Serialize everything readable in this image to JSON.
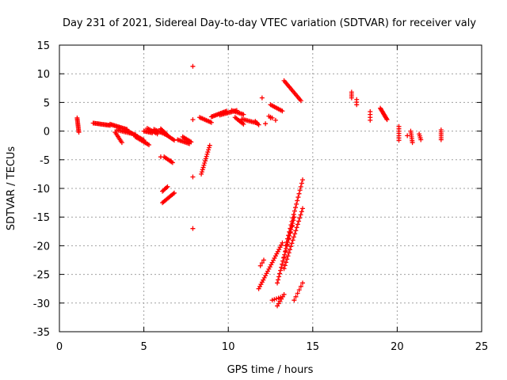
{
  "chart_data": {
    "type": "scatter",
    "title": "Day 231 of 2021, Sidereal Day-to-day VTEC variation (SDTVAR) for receiver valy",
    "xlabel": "GPS time / hours",
    "ylabel": "SDTVAR / TECUs",
    "xlim": [
      0,
      25
    ],
    "ylim": [
      -35,
      15
    ],
    "x_ticks": [
      "0",
      "5",
      "10",
      "15",
      "20",
      "25"
    ],
    "y_ticks": [
      "15",
      "10",
      "5",
      "0",
      "-5",
      "-10",
      "-15",
      "-20",
      "-25",
      "-30",
      "-35"
    ],
    "grid": true,
    "marker": "+",
    "series": [
      {
        "name": "SDTVAR",
        "color": "#ff0000",
        "segments": [
          {
            "from": [
              1.05,
              2.3
            ],
            "to": [
              1.15,
              -0.2
            ],
            "n": 12
          },
          {
            "from": [
              2.0,
              1.4
            ],
            "to": [
              3.0,
              1.0
            ],
            "n": 16
          },
          {
            "from": [
              3.0,
              1.2
            ],
            "to": [
              4.0,
              0.3
            ],
            "n": 16
          },
          {
            "from": [
              3.4,
              0.2
            ],
            "to": [
              4.5,
              -0.6
            ],
            "n": 14
          },
          {
            "from": [
              3.3,
              -0.2
            ],
            "to": [
              3.7,
              -2.0
            ],
            "n": 8
          },
          {
            "from": [
              4.0,
              0.1
            ],
            "to": [
              5.0,
              -1.6
            ],
            "n": 16
          },
          {
            "from": [
              4.5,
              -1.0
            ],
            "to": [
              5.3,
              -2.4
            ],
            "n": 12
          },
          {
            "from": [
              5.0,
              0.0
            ],
            "to": [
              5.5,
              -0.3
            ],
            "n": 8
          },
          {
            "from": [
              5.2,
              0.5
            ],
            "to": [
              5.8,
              -0.5
            ],
            "n": 8
          },
          {
            "from": [
              5.6,
              0.3
            ],
            "to": [
              6.3,
              -0.6
            ],
            "n": 10
          },
          {
            "from": [
              6.0,
              0.4
            ],
            "to": [
              6.4,
              -0.7
            ],
            "n": 8
          },
          {
            "from": [
              6.3,
              -0.6
            ],
            "to": [
              6.8,
              -1.6
            ],
            "n": 8
          },
          {
            "from": [
              6.2,
              -4.5
            ],
            "to": [
              6.7,
              -5.5
            ],
            "n": 8
          },
          {
            "from": [
              6.1,
              -10.5
            ],
            "to": [
              6.4,
              -9.7
            ],
            "n": 6
          },
          {
            "from": [
              6.1,
              -12.5
            ],
            "to": [
              6.8,
              -10.8
            ],
            "n": 12
          },
          {
            "from": [
              7.0,
              -1.5
            ],
            "to": [
              7.7,
              -2.2
            ],
            "n": 10
          },
          {
            "from": [
              7.3,
              -1.0
            ],
            "to": [
              7.8,
              -1.9
            ],
            "n": 8
          },
          {
            "from": [
              8.4,
              -7.5
            ],
            "to": [
              8.9,
              -2.5
            ],
            "n": 14
          },
          {
            "from": [
              8.3,
              2.4
            ],
            "to": [
              9.0,
              1.5
            ],
            "n": 10
          },
          {
            "from": [
              9.0,
              2.5
            ],
            "to": [
              9.9,
              3.5
            ],
            "n": 14
          },
          {
            "from": [
              9.5,
              2.8
            ],
            "to": [
              10.5,
              3.6
            ],
            "n": 14
          },
          {
            "from": [
              10.2,
              3.6
            ],
            "to": [
              10.9,
              2.9
            ],
            "n": 10
          },
          {
            "from": [
              10.4,
              2.4
            ],
            "to": [
              10.9,
              1.2
            ],
            "n": 8
          },
          {
            "from": [
              10.8,
              2.1
            ],
            "to": [
              11.7,
              1.4
            ],
            "n": 12
          },
          {
            "from": [
              11.6,
              1.7
            ],
            "to": [
              11.8,
              1.1
            ],
            "n": 4
          },
          {
            "from": [
              12.5,
              4.6
            ],
            "to": [
              13.2,
              3.5
            ],
            "n": 10
          },
          {
            "from": [
              12.4,
              2.6
            ],
            "to": [
              12.6,
              2.3
            ],
            "n": 3
          },
          {
            "from": [
              13.3,
              8.8
            ],
            "to": [
              14.3,
              5.3
            ],
            "n": 16
          },
          {
            "from": [
              11.8,
              -27.5
            ],
            "to": [
              13.2,
              -19.5
            ],
            "n": 22
          },
          {
            "from": [
              12.9,
              -26.5
            ],
            "to": [
              13.9,
              -15.0
            ],
            "n": 22
          },
          {
            "from": [
              13.3,
              -24.0
            ],
            "to": [
              14.4,
              -13.5
            ],
            "n": 20
          },
          {
            "from": [
              13.4,
              -20.0
            ],
            "to": [
              14.4,
              -8.5
            ],
            "n": 20
          },
          {
            "from": [
              12.9,
              -30.5
            ],
            "to": [
              13.3,
              -28.5
            ],
            "n": 6
          },
          {
            "from": [
              12.6,
              -29.5
            ],
            "to": [
              13.1,
              -29.0
            ],
            "n": 5
          },
          {
            "from": [
              13.9,
              -29.5
            ],
            "to": [
              14.4,
              -26.5
            ],
            "n": 6
          },
          {
            "from": [
              11.9,
              -23.5
            ],
            "to": [
              12.1,
              -22.5
            ],
            "n": 3
          },
          {
            "from": [
              13.3,
              -22.0
            ],
            "to": [
              13.8,
              -16.5
            ],
            "n": 6
          },
          {
            "from": [
              17.3,
              6.8
            ],
            "to": [
              17.3,
              5.8
            ],
            "n": 4
          },
          {
            "from": [
              17.6,
              5.5
            ],
            "to": [
              17.6,
              4.6
            ],
            "n": 3
          },
          {
            "from": [
              18.4,
              3.4
            ],
            "to": [
              18.4,
              1.9
            ],
            "n": 4
          },
          {
            "from": [
              19.0,
              4.0
            ],
            "to": [
              19.4,
              2.0
            ],
            "n": 12
          },
          {
            "from": [
              20.1,
              0.8
            ],
            "to": [
              20.1,
              -1.6
            ],
            "n": 7
          },
          {
            "from": [
              20.8,
              0.0
            ],
            "to": [
              20.9,
              -2.0
            ],
            "n": 7
          },
          {
            "from": [
              21.3,
              -0.5
            ],
            "to": [
              21.4,
              -1.5
            ],
            "n": 4
          },
          {
            "from": [
              22.6,
              0.2
            ],
            "to": [
              22.6,
              -1.5
            ],
            "n": 6
          }
        ],
        "points": [
          [
            7.9,
            11.3
          ],
          [
            7.9,
            2.0
          ],
          [
            12.0,
            5.8
          ],
          [
            12.2,
            1.3
          ],
          [
            7.9,
            -8.0
          ],
          [
            7.9,
            -17.0
          ],
          [
            6.0,
            -4.5
          ],
          [
            6.6,
            -5.2
          ],
          [
            12.5,
            2.3
          ],
          [
            12.8,
            1.9
          ],
          [
            20.6,
            -0.8
          ]
        ]
      }
    ]
  }
}
